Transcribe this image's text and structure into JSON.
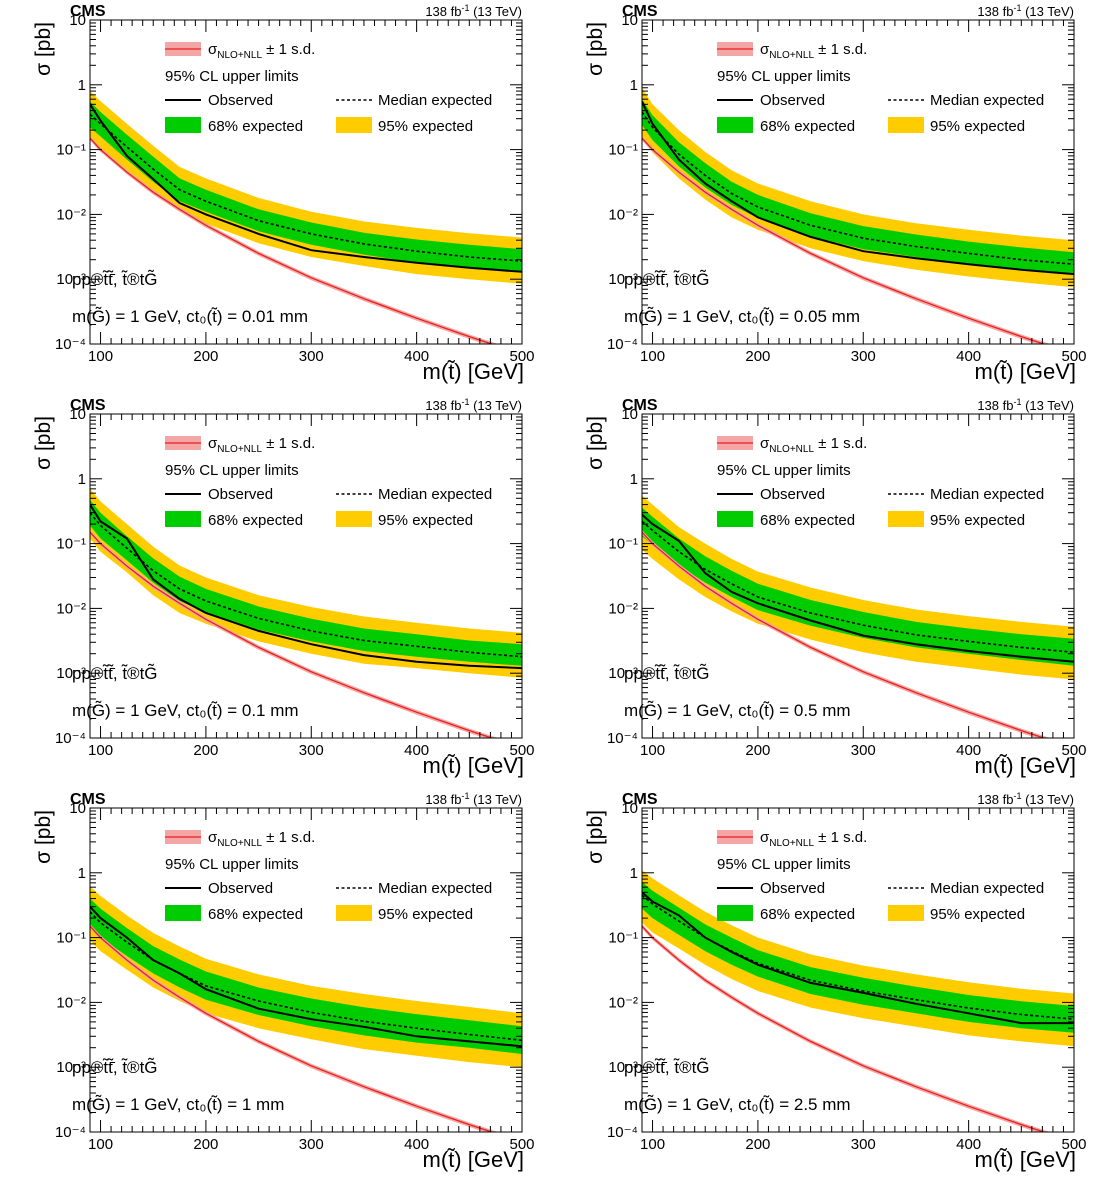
{
  "experiment": "CMS",
  "lumi": "138 fb",
  "lumi_sup": "-1",
  "energy": "(13 TeV)",
  "ylabel": "σ [pb]",
  "xlabel": "m(t̃) [GeV]",
  "legend": {
    "theory": "σ",
    "theory_sub": "NLO+NLL",
    "theory_suffix": "± 1 s.d.",
    "header": "95% CL upper limits",
    "observed": "Observed",
    "median": "Median expected",
    "band68": "68% expected",
    "band95": "95% expected"
  },
  "process_label": "pp®t̃t̃̄, t̃®tG̃",
  "colors": {
    "observed": "#000000",
    "theory": "#e8201a",
    "theory_band": "#f4a6a6",
    "band68": "#00cc00",
    "band95": "#ffcc00"
  },
  "chart_data": [
    {
      "type": "line",
      "panel": "ct0 = 0.01 mm",
      "model_label": "m(G̃) = 1 GeV, ct₀(t̃) = 0.01 mm",
      "xlim": [
        90,
        500
      ],
      "ylim": [
        0.0001,
        10
      ],
      "yscale": "log",
      "x_ticks": [
        100,
        200,
        300,
        400,
        500
      ],
      "y_ticks": [
        "10⁻⁴",
        "10⁻³",
        "10⁻²",
        "10⁻¹",
        "1",
        "10"
      ],
      "x": [
        90,
        100,
        125,
        150,
        175,
        200,
        250,
        300,
        350,
        400,
        450,
        500
      ],
      "observed": [
        0.5,
        0.28,
        0.08,
        0.035,
        0.015,
        0.01,
        0.005,
        0.0028,
        0.0022,
        0.0018,
        0.0015,
        0.0013
      ],
      "expected": [
        0.35,
        0.25,
        0.11,
        0.05,
        0.024,
        0.016,
        0.008,
        0.005,
        0.0035,
        0.0027,
        0.0022,
        0.0019
      ],
      "band68": [
        [
          0.22,
          0.55
        ],
        [
          0.16,
          0.38
        ],
        [
          0.07,
          0.17
        ],
        [
          0.032,
          0.078
        ],
        [
          0.016,
          0.036
        ],
        [
          0.011,
          0.024
        ],
        [
          0.0055,
          0.012
        ],
        [
          0.0034,
          0.0075
        ],
        [
          0.0024,
          0.0052
        ],
        [
          0.0018,
          0.0041
        ],
        [
          0.0015,
          0.0034
        ],
        [
          0.0013,
          0.0029
        ]
      ],
      "band95": [
        [
          0.14,
          0.8
        ],
        [
          0.1,
          0.56
        ],
        [
          0.045,
          0.25
        ],
        [
          0.021,
          0.115
        ],
        [
          0.011,
          0.054
        ],
        [
          0.0072,
          0.036
        ],
        [
          0.0036,
          0.018
        ],
        [
          0.0022,
          0.011
        ],
        [
          0.0016,
          0.0078
        ],
        [
          0.0012,
          0.0062
        ],
        [
          0.001,
          0.0051
        ],
        [
          0.00085,
          0.0044
        ]
      ],
      "theory": [
        0.15,
        0.1,
        0.045,
        0.022,
        0.012,
        0.0068,
        0.0025,
        0.00105,
        0.0005,
        0.00025,
        0.00013,
        7e-05
      ]
    },
    {
      "type": "line",
      "panel": "ct0 = 0.05 mm",
      "model_label": "m(G̃) = 1 GeV, ct₀(t̃) = 0.05 mm",
      "xlim": [
        90,
        500
      ],
      "ylim": [
        0.0001,
        10
      ],
      "yscale": "log",
      "x_ticks": [
        100,
        200,
        300,
        400,
        500
      ],
      "y_ticks": [
        "10⁻⁴",
        "10⁻³",
        "10⁻²",
        "10⁻¹",
        "1",
        "10"
      ],
      "x": [
        90,
        100,
        125,
        150,
        175,
        200,
        250,
        300,
        350,
        400,
        450,
        500
      ],
      "observed": [
        0.55,
        0.25,
        0.07,
        0.03,
        0.016,
        0.009,
        0.0045,
        0.0027,
        0.0021,
        0.0017,
        0.0014,
        0.0012
      ],
      "expected": [
        0.38,
        0.22,
        0.085,
        0.04,
        0.021,
        0.013,
        0.0068,
        0.0043,
        0.0032,
        0.0025,
        0.002,
        0.0017
      ],
      "band68": [
        [
          0.24,
          0.6
        ],
        [
          0.14,
          0.34
        ],
        [
          0.055,
          0.13
        ],
        [
          0.026,
          0.062
        ],
        [
          0.014,
          0.032
        ],
        [
          0.0088,
          0.02
        ],
        [
          0.0046,
          0.0104
        ],
        [
          0.0029,
          0.0066
        ],
        [
          0.0022,
          0.0049
        ],
        [
          0.0017,
          0.0038
        ],
        [
          0.0014,
          0.0031
        ],
        [
          0.0012,
          0.0026
        ]
      ],
      "band95": [
        [
          0.15,
          0.9
        ],
        [
          0.09,
          0.5
        ],
        [
          0.036,
          0.2
        ],
        [
          0.017,
          0.092
        ],
        [
          0.009,
          0.048
        ],
        [
          0.0058,
          0.03
        ],
        [
          0.003,
          0.016
        ],
        [
          0.0019,
          0.01
        ],
        [
          0.0014,
          0.0073
        ],
        [
          0.0011,
          0.0058
        ],
        [
          0.0009,
          0.0047
        ],
        [
          0.00075,
          0.004
        ]
      ],
      "theory": [
        0.15,
        0.1,
        0.045,
        0.022,
        0.012,
        0.0068,
        0.0025,
        0.00105,
        0.0005,
        0.00025,
        0.00013,
        7e-05
      ]
    },
    {
      "type": "line",
      "panel": "ct0 = 0.1 mm",
      "model_label": "m(G̃) = 1 GeV, ct₀(t̃) = 0.1 mm",
      "xlim": [
        90,
        500
      ],
      "ylim": [
        0.0001,
        10
      ],
      "yscale": "log",
      "x_ticks": [
        100,
        200,
        300,
        400,
        500
      ],
      "y_ticks": [
        "10⁻⁴",
        "10⁻³",
        "10⁻²",
        "10⁻¹",
        "1",
        "10"
      ],
      "x": [
        90,
        100,
        125,
        150,
        175,
        200,
        250,
        300,
        350,
        400,
        450,
        500
      ],
      "observed": [
        0.4,
        0.22,
        0.12,
        0.028,
        0.014,
        0.0085,
        0.0045,
        0.0028,
        0.0019,
        0.0015,
        0.0013,
        0.0012
      ],
      "expected": [
        0.3,
        0.19,
        0.085,
        0.038,
        0.02,
        0.013,
        0.007,
        0.0045,
        0.0032,
        0.0026,
        0.0021,
        0.0018
      ],
      "band68": [
        [
          0.19,
          0.47
        ],
        [
          0.12,
          0.3
        ],
        [
          0.055,
          0.13
        ],
        [
          0.025,
          0.059
        ],
        [
          0.013,
          0.031
        ],
        [
          0.0088,
          0.02
        ],
        [
          0.0047,
          0.0107
        ],
        [
          0.0031,
          0.0069
        ],
        [
          0.0022,
          0.0049
        ],
        [
          0.0018,
          0.004
        ],
        [
          0.0015,
          0.0032
        ],
        [
          0.0013,
          0.0028
        ]
      ],
      "band95": [
        [
          0.12,
          0.7
        ],
        [
          0.075,
          0.45
        ],
        [
          0.036,
          0.2
        ],
        [
          0.016,
          0.09
        ],
        [
          0.0085,
          0.046
        ],
        [
          0.0058,
          0.03
        ],
        [
          0.0031,
          0.016
        ],
        [
          0.002,
          0.0105
        ],
        [
          0.0014,
          0.0075
        ],
        [
          0.0012,
          0.006
        ],
        [
          0.001,
          0.0049
        ],
        [
          0.00085,
          0.0042
        ]
      ],
      "theory": [
        0.15,
        0.1,
        0.045,
        0.022,
        0.012,
        0.0068,
        0.0025,
        0.00105,
        0.0005,
        0.00025,
        0.00013,
        7e-05
      ]
    },
    {
      "type": "line",
      "panel": "ct0 = 0.5 mm",
      "model_label": "m(G̃) = 1 GeV, ct₀(t̃) = 0.5 mm",
      "xlim": [
        90,
        500
      ],
      "ylim": [
        0.0001,
        10
      ],
      "yscale": "log",
      "x_ticks": [
        100,
        200,
        300,
        400,
        500
      ],
      "y_ticks": [
        "10⁻⁴",
        "10⁻³",
        "10⁻²",
        "10⁻¹",
        "1",
        "10"
      ],
      "x": [
        90,
        100,
        125,
        150,
        175,
        200,
        250,
        300,
        350,
        400,
        450,
        500
      ],
      "observed": [
        0.28,
        0.2,
        0.11,
        0.035,
        0.018,
        0.012,
        0.0065,
        0.0038,
        0.0028,
        0.0022,
        0.0018,
        0.0015
      ],
      "expected": [
        0.22,
        0.16,
        0.075,
        0.04,
        0.024,
        0.015,
        0.0085,
        0.0055,
        0.0039,
        0.0031,
        0.0025,
        0.0021
      ],
      "band68": [
        [
          0.13,
          0.36
        ],
        [
          0.095,
          0.26
        ],
        [
          0.046,
          0.12
        ],
        [
          0.025,
          0.064
        ],
        [
          0.015,
          0.038
        ],
        [
          0.0094,
          0.024
        ],
        [
          0.0054,
          0.0135
        ],
        [
          0.0035,
          0.0088
        ],
        [
          0.0025,
          0.0062
        ],
        [
          0.002,
          0.0049
        ],
        [
          0.0016,
          0.004
        ],
        [
          0.0013,
          0.0034
        ]
      ],
      "band95": [
        [
          0.08,
          0.55
        ],
        [
          0.058,
          0.4
        ],
        [
          0.028,
          0.18
        ],
        [
          0.015,
          0.1
        ],
        [
          0.009,
          0.058
        ],
        [
          0.0058,
          0.037
        ],
        [
          0.0033,
          0.021
        ],
        [
          0.0021,
          0.0135
        ],
        [
          0.0015,
          0.0096
        ],
        [
          0.0012,
          0.0076
        ],
        [
          0.00095,
          0.0062
        ],
        [
          0.0008,
          0.0052
        ]
      ],
      "theory": [
        0.15,
        0.1,
        0.045,
        0.022,
        0.012,
        0.0068,
        0.0025,
        0.00105,
        0.0005,
        0.00025,
        0.00013,
        7e-05
      ]
    },
    {
      "type": "line",
      "panel": "ct0 = 1 mm",
      "model_label": "m(G̃) = 1 GeV, ct₀(t̃) = 1 mm",
      "xlim": [
        90,
        500
      ],
      "ylim": [
        0.0001,
        10
      ],
      "yscale": "log",
      "x_ticks": [
        100,
        200,
        300,
        400,
        500
      ],
      "y_ticks": [
        "10⁻⁴",
        "10⁻³",
        "10⁻²",
        "10⁻¹",
        "1",
        "10"
      ],
      "x": [
        90,
        100,
        125,
        150,
        175,
        200,
        250,
        300,
        350,
        400,
        450,
        500
      ],
      "observed": [
        0.3,
        0.2,
        0.1,
        0.045,
        0.028,
        0.016,
        0.008,
        0.0055,
        0.0042,
        0.003,
        0.0025,
        0.0021
      ],
      "expected": [
        0.25,
        0.17,
        0.085,
        0.045,
        0.028,
        0.018,
        0.0105,
        0.007,
        0.0051,
        0.004,
        0.0032,
        0.0026
      ],
      "band68": [
        [
          0.15,
          0.4
        ],
        [
          0.1,
          0.28
        ],
        [
          0.052,
          0.14
        ],
        [
          0.028,
          0.074
        ],
        [
          0.017,
          0.046
        ],
        [
          0.011,
          0.03
        ],
        [
          0.0064,
          0.017
        ],
        [
          0.0043,
          0.0115
        ],
        [
          0.0031,
          0.0084
        ],
        [
          0.0024,
          0.0066
        ],
        [
          0.002,
          0.0053
        ],
        [
          0.0016,
          0.0043
        ]
      ],
      "band95": [
        [
          0.09,
          0.62
        ],
        [
          0.062,
          0.44
        ],
        [
          0.032,
          0.22
        ],
        [
          0.017,
          0.118
        ],
        [
          0.0105,
          0.073
        ],
        [
          0.0068,
          0.047
        ],
        [
          0.004,
          0.027
        ],
        [
          0.0027,
          0.018
        ],
        [
          0.0019,
          0.0135
        ],
        [
          0.0015,
          0.0105
        ],
        [
          0.0012,
          0.0085
        ],
        [
          0.001,
          0.0068
        ]
      ],
      "theory": [
        0.15,
        0.1,
        0.045,
        0.022,
        0.012,
        0.0068,
        0.0025,
        0.00105,
        0.0005,
        0.00025,
        0.00013,
        7e-05
      ]
    },
    {
      "type": "line",
      "panel": "ct0 = 2.5 mm",
      "model_label": "m(G̃) = 1 GeV, ct₀(t̃) = 2.5 mm",
      "xlim": [
        90,
        500
      ],
      "ylim": [
        0.0001,
        10
      ],
      "yscale": "log",
      "x_ticks": [
        100,
        200,
        300,
        400,
        500
      ],
      "y_ticks": [
        "10⁻⁴",
        "10⁻³",
        "10⁻²",
        "10⁻¹",
        "1",
        "10"
      ],
      "x": [
        90,
        100,
        125,
        150,
        175,
        200,
        250,
        300,
        350,
        400,
        450,
        500
      ],
      "observed": [
        0.5,
        0.36,
        0.22,
        0.1,
        0.06,
        0.038,
        0.02,
        0.014,
        0.0095,
        0.0068,
        0.0048,
        0.0048
      ],
      "expected": [
        0.45,
        0.33,
        0.18,
        0.1,
        0.062,
        0.04,
        0.022,
        0.015,
        0.011,
        0.0082,
        0.0065,
        0.0055
      ],
      "band68": [
        [
          0.28,
          0.72
        ],
        [
          0.2,
          0.53
        ],
        [
          0.11,
          0.29
        ],
        [
          0.062,
          0.16
        ],
        [
          0.038,
          0.1
        ],
        [
          0.025,
          0.064
        ],
        [
          0.0135,
          0.035
        ],
        [
          0.0092,
          0.024
        ],
        [
          0.0068,
          0.0175
        ],
        [
          0.005,
          0.013
        ],
        [
          0.004,
          0.0104
        ],
        [
          0.0034,
          0.0088
        ]
      ],
      "band95": [
        [
          0.17,
          1.1
        ],
        [
          0.12,
          0.82
        ],
        [
          0.068,
          0.45
        ],
        [
          0.038,
          0.25
        ],
        [
          0.023,
          0.155
        ],
        [
          0.015,
          0.1
        ],
        [
          0.0083,
          0.055
        ],
        [
          0.0057,
          0.037
        ],
        [
          0.0042,
          0.027
        ],
        [
          0.0031,
          0.0205
        ],
        [
          0.0025,
          0.0162
        ],
        [
          0.0021,
          0.0137
        ]
      ],
      "theory": [
        0.15,
        0.1,
        0.045,
        0.022,
        0.012,
        0.0068,
        0.0025,
        0.00105,
        0.0005,
        0.00025,
        0.00013,
        7e-05
      ]
    }
  ]
}
